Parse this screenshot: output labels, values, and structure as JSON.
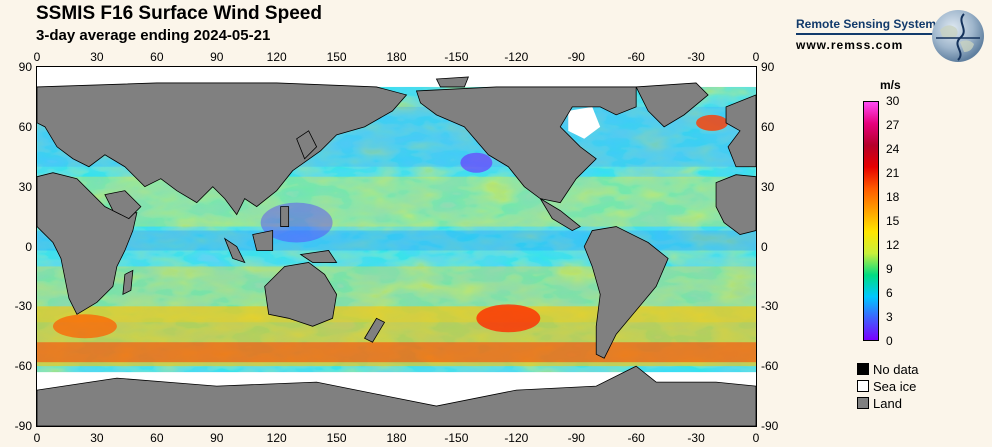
{
  "header": {
    "title": "SSMIS F16 Surface Wind Speed",
    "subtitle": "3-day average ending 2024-05-21"
  },
  "branding": {
    "org": "Remote Sensing Systems",
    "url": "www.remss.com",
    "logo_icon": "globe-logo-icon"
  },
  "map": {
    "lon_ticks": [
      "0",
      "30",
      "60",
      "90",
      "120",
      "150",
      "180",
      "-150",
      "-120",
      "-90",
      "-60",
      "-30",
      "0"
    ],
    "lat_ticks": [
      "90",
      "60",
      "30",
      "0",
      "-30",
      "-60",
      "-90"
    ],
    "colors": {
      "land": "#808080",
      "sea_ice": "#ffffff",
      "no_data": "#000000"
    }
  },
  "colorbar": {
    "units": "m/s",
    "labels": [
      "30",
      "27",
      "24",
      "21",
      "18",
      "15",
      "12",
      "9",
      "6",
      "3",
      "0"
    ],
    "stops": [
      "#ff4cf5",
      "#e6007c",
      "#b5002a",
      "#e60000",
      "#ff5a00",
      "#ffa000",
      "#ffe600",
      "#c8f03c",
      "#00dc82",
      "#00c8ff",
      "#4060ff",
      "#7a00ff"
    ]
  },
  "legend": [
    {
      "label": "No data",
      "color": "#000000"
    },
    {
      "label": "Sea ice",
      "color": "#ffffff"
    },
    {
      "label": "Land",
      "color": "#808080"
    }
  ]
}
